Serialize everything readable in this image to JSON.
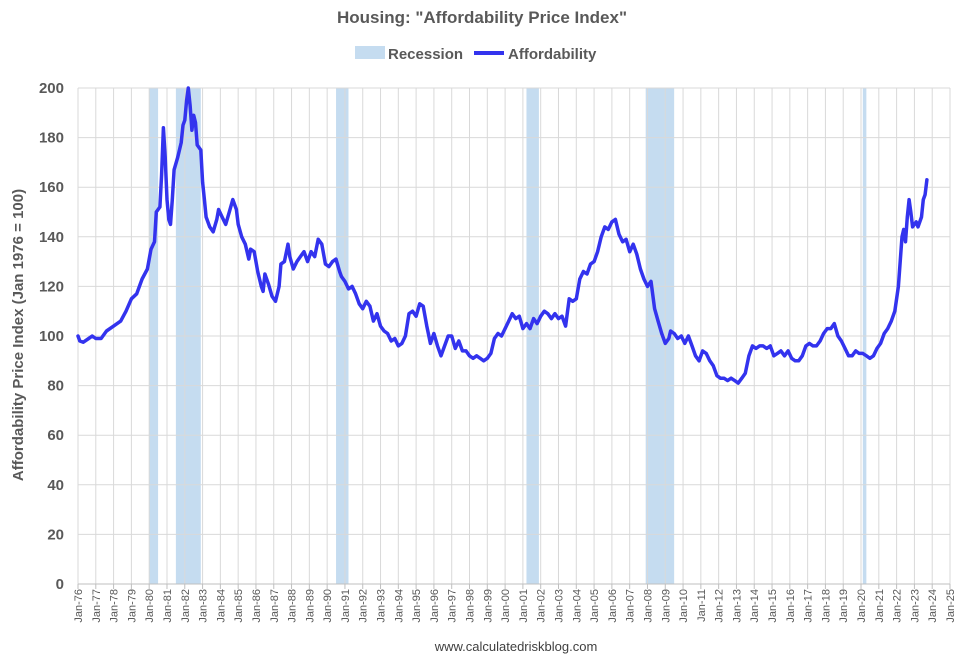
{
  "chart_data": {
    "type": "line",
    "title": "Housing: \"Affordability Price Index\"",
    "ylabel": "Affordability Price Index (Jan 1976 = 100)",
    "xlabel": "",
    "ylim": [
      0,
      200
    ],
    "yticks": [
      0,
      20,
      40,
      60,
      80,
      100,
      120,
      140,
      160,
      180,
      200
    ],
    "xlim": [
      1976,
      2025
    ],
    "x_tick_labels": [
      "Jan-76",
      "Jan-77",
      "Jan-78",
      "Jan-79",
      "Jan-80",
      "Jan-81",
      "Jan-82",
      "Jan-83",
      "Jan-84",
      "Jan-85",
      "Jan-86",
      "Jan-87",
      "Jan-88",
      "Jan-89",
      "Jan-90",
      "Jan-91",
      "Jan-92",
      "Jan-93",
      "Jan-94",
      "Jan-95",
      "Jan-96",
      "Jan-97",
      "Jan-98",
      "Jan-99",
      "Jan-00",
      "Jan-01",
      "Jan-02",
      "Jan-03",
      "Jan-04",
      "Jan-05",
      "Jan-06",
      "Jan-07",
      "Jan-08",
      "Jan-09",
      "Jan-10",
      "Jan-11",
      "Jan-12",
      "Jan-13",
      "Jan-14",
      "Jan-15",
      "Jan-16",
      "Jan-17",
      "Jan-18",
      "Jan-19",
      "Jan-20",
      "Jan-21",
      "Jan-22",
      "Jan-23",
      "Jan-24",
      "Jan-25"
    ],
    "grid": true,
    "legend_position": "top",
    "legend": [
      {
        "label": "Recession",
        "type": "band",
        "color": "#c5dcf0"
      },
      {
        "label": "Affordability",
        "type": "line",
        "color": "#3333ee"
      }
    ],
    "recessions": [
      [
        1980.0,
        1980.5
      ],
      [
        1981.5,
        1982.9
      ],
      [
        1990.5,
        1991.2
      ],
      [
        2001.2,
        2001.9
      ],
      [
        2007.9,
        2009.5
      ],
      [
        2020.1,
        2020.3
      ]
    ],
    "series": [
      {
        "name": "Affordability",
        "color": "#3333ee",
        "points": [
          [
            1976.0,
            100
          ],
          [
            1976.1,
            98
          ],
          [
            1976.3,
            97.5
          ],
          [
            1976.6,
            99
          ],
          [
            1976.8,
            100
          ],
          [
            1977.0,
            99
          ],
          [
            1977.3,
            99
          ],
          [
            1977.6,
            102
          ],
          [
            1978.0,
            104
          ],
          [
            1978.4,
            106
          ],
          [
            1978.7,
            110
          ],
          [
            1979.0,
            115
          ],
          [
            1979.3,
            117
          ],
          [
            1979.6,
            123
          ],
          [
            1979.9,
            127
          ],
          [
            1980.1,
            135
          ],
          [
            1980.3,
            138
          ],
          [
            1980.4,
            150
          ],
          [
            1980.6,
            152
          ],
          [
            1980.7,
            165
          ],
          [
            1980.8,
            184
          ],
          [
            1980.9,
            172
          ],
          [
            1981.0,
            155
          ],
          [
            1981.1,
            147
          ],
          [
            1981.2,
            145
          ],
          [
            1981.3,
            155
          ],
          [
            1981.4,
            167
          ],
          [
            1981.6,
            172
          ],
          [
            1981.8,
            178
          ],
          [
            1981.9,
            185
          ],
          [
            1982.0,
            187
          ],
          [
            1982.1,
            195
          ],
          [
            1982.2,
            200
          ],
          [
            1982.3,
            193
          ],
          [
            1982.4,
            183
          ],
          [
            1982.5,
            189
          ],
          [
            1982.6,
            186
          ],
          [
            1982.7,
            177
          ],
          [
            1982.9,
            175
          ],
          [
            1983.0,
            162
          ],
          [
            1983.1,
            155
          ],
          [
            1983.2,
            148
          ],
          [
            1983.4,
            144
          ],
          [
            1983.6,
            142
          ],
          [
            1983.8,
            147
          ],
          [
            1983.9,
            151
          ],
          [
            1984.1,
            148
          ],
          [
            1984.3,
            145
          ],
          [
            1984.5,
            150
          ],
          [
            1984.7,
            155
          ],
          [
            1984.9,
            151
          ],
          [
            1985.0,
            145
          ],
          [
            1985.2,
            140
          ],
          [
            1985.4,
            137
          ],
          [
            1985.6,
            131
          ],
          [
            1985.7,
            135
          ],
          [
            1985.9,
            134
          ],
          [
            1986.1,
            126
          ],
          [
            1986.3,
            120
          ],
          [
            1986.4,
            118
          ],
          [
            1986.5,
            125
          ],
          [
            1986.7,
            121
          ],
          [
            1986.9,
            116
          ],
          [
            1987.1,
            114
          ],
          [
            1987.3,
            120
          ],
          [
            1987.4,
            129
          ],
          [
            1987.6,
            130
          ],
          [
            1987.8,
            137
          ],
          [
            1987.9,
            132
          ],
          [
            1988.1,
            127
          ],
          [
            1988.3,
            130
          ],
          [
            1988.5,
            132
          ],
          [
            1988.7,
            134
          ],
          [
            1988.9,
            130
          ],
          [
            1989.1,
            134
          ],
          [
            1989.3,
            132
          ],
          [
            1989.5,
            139
          ],
          [
            1989.7,
            137
          ],
          [
            1989.9,
            129
          ],
          [
            1990.1,
            128
          ],
          [
            1990.3,
            130
          ],
          [
            1990.5,
            131
          ],
          [
            1990.7,
            126
          ],
          [
            1990.8,
            124
          ],
          [
            1991.0,
            122
          ],
          [
            1991.2,
            119
          ],
          [
            1991.4,
            120
          ],
          [
            1991.6,
            117
          ],
          [
            1991.8,
            113
          ],
          [
            1992.0,
            111
          ],
          [
            1992.2,
            114
          ],
          [
            1992.4,
            112
          ],
          [
            1992.6,
            106
          ],
          [
            1992.8,
            109
          ],
          [
            1993.0,
            104
          ],
          [
            1993.2,
            102
          ],
          [
            1993.4,
            101
          ],
          [
            1993.6,
            98
          ],
          [
            1993.8,
            99
          ],
          [
            1994.0,
            96
          ],
          [
            1994.2,
            97
          ],
          [
            1994.4,
            100
          ],
          [
            1994.6,
            109
          ],
          [
            1994.8,
            110
          ],
          [
            1995.0,
            108
          ],
          [
            1995.2,
            113
          ],
          [
            1995.4,
            112
          ],
          [
            1995.6,
            104
          ],
          [
            1995.8,
            97
          ],
          [
            1996.0,
            101
          ],
          [
            1996.2,
            96
          ],
          [
            1996.4,
            92
          ],
          [
            1996.6,
            96
          ],
          [
            1996.8,
            100
          ],
          [
            1997.0,
            100
          ],
          [
            1997.2,
            95
          ],
          [
            1997.4,
            98
          ],
          [
            1997.6,
            94
          ],
          [
            1997.8,
            94
          ],
          [
            1998.0,
            92
          ],
          [
            1998.2,
            91
          ],
          [
            1998.4,
            92
          ],
          [
            1998.6,
            91
          ],
          [
            1998.8,
            90
          ],
          [
            1999.0,
            91
          ],
          [
            1999.2,
            93
          ],
          [
            1999.4,
            99
          ],
          [
            1999.6,
            101
          ],
          [
            1999.8,
            100
          ],
          [
            2000.0,
            103
          ],
          [
            2000.2,
            106
          ],
          [
            2000.4,
            109
          ],
          [
            2000.6,
            107
          ],
          [
            2000.8,
            108
          ],
          [
            2001.0,
            103
          ],
          [
            2001.2,
            105
          ],
          [
            2001.4,
            103
          ],
          [
            2001.6,
            107
          ],
          [
            2001.8,
            105
          ],
          [
            2002.0,
            108
          ],
          [
            2002.2,
            110
          ],
          [
            2002.4,
            109
          ],
          [
            2002.6,
            107
          ],
          [
            2002.8,
            109
          ],
          [
            2003.0,
            107
          ],
          [
            2003.2,
            108
          ],
          [
            2003.4,
            104
          ],
          [
            2003.6,
            115
          ],
          [
            2003.8,
            114
          ],
          [
            2004.0,
            115
          ],
          [
            2004.2,
            123
          ],
          [
            2004.4,
            126
          ],
          [
            2004.6,
            125
          ],
          [
            2004.8,
            129
          ],
          [
            2005.0,
            130
          ],
          [
            2005.2,
            134
          ],
          [
            2005.4,
            140
          ],
          [
            2005.6,
            144
          ],
          [
            2005.8,
            143
          ],
          [
            2006.0,
            146
          ],
          [
            2006.2,
            147
          ],
          [
            2006.4,
            141
          ],
          [
            2006.6,
            138
          ],
          [
            2006.8,
            139
          ],
          [
            2007.0,
            134
          ],
          [
            2007.2,
            137
          ],
          [
            2007.4,
            133
          ],
          [
            2007.6,
            127
          ],
          [
            2007.8,
            123
          ],
          [
            2008.0,
            120
          ],
          [
            2008.2,
            122
          ],
          [
            2008.4,
            111
          ],
          [
            2008.6,
            106
          ],
          [
            2008.8,
            101
          ],
          [
            2009.0,
            97
          ],
          [
            2009.2,
            99
          ],
          [
            2009.3,
            102
          ],
          [
            2009.5,
            101
          ],
          [
            2009.7,
            99
          ],
          [
            2009.9,
            100
          ],
          [
            2010.1,
            97
          ],
          [
            2010.3,
            100
          ],
          [
            2010.5,
            96
          ],
          [
            2010.7,
            92
          ],
          [
            2010.9,
            90
          ],
          [
            2011.1,
            94
          ],
          [
            2011.3,
            93
          ],
          [
            2011.5,
            90
          ],
          [
            2011.7,
            88
          ],
          [
            2011.9,
            84
          ],
          [
            2012.1,
            83
          ],
          [
            2012.3,
            83
          ],
          [
            2012.5,
            82
          ],
          [
            2012.7,
            83
          ],
          [
            2012.9,
            82
          ],
          [
            2013.1,
            81
          ],
          [
            2013.3,
            83
          ],
          [
            2013.5,
            85
          ],
          [
            2013.7,
            92
          ],
          [
            2013.9,
            96
          ],
          [
            2014.1,
            95
          ],
          [
            2014.3,
            96
          ],
          [
            2014.5,
            96
          ],
          [
            2014.7,
            95
          ],
          [
            2014.9,
            96
          ],
          [
            2015.1,
            92
          ],
          [
            2015.3,
            93
          ],
          [
            2015.5,
            94
          ],
          [
            2015.7,
            92
          ],
          [
            2015.9,
            94
          ],
          [
            2016.1,
            91
          ],
          [
            2016.3,
            90
          ],
          [
            2016.5,
            90
          ],
          [
            2016.7,
            92
          ],
          [
            2016.9,
            96
          ],
          [
            2017.1,
            97
          ],
          [
            2017.3,
            96
          ],
          [
            2017.5,
            96
          ],
          [
            2017.7,
            98
          ],
          [
            2017.9,
            101
          ],
          [
            2018.1,
            103
          ],
          [
            2018.3,
            103
          ],
          [
            2018.5,
            105
          ],
          [
            2018.7,
            100
          ],
          [
            2018.9,
            98
          ],
          [
            2019.1,
            95
          ],
          [
            2019.3,
            92
          ],
          [
            2019.5,
            92
          ],
          [
            2019.7,
            94
          ],
          [
            2019.9,
            93
          ],
          [
            2020.1,
            93
          ],
          [
            2020.3,
            92
          ],
          [
            2020.5,
            91
          ],
          [
            2020.7,
            92
          ],
          [
            2020.9,
            95
          ],
          [
            2021.1,
            97
          ],
          [
            2021.3,
            101
          ],
          [
            2021.5,
            103
          ],
          [
            2021.7,
            106
          ],
          [
            2021.9,
            110
          ],
          [
            2022.1,
            120
          ],
          [
            2022.3,
            140
          ],
          [
            2022.4,
            143
          ],
          [
            2022.5,
            138
          ],
          [
            2022.6,
            148
          ],
          [
            2022.7,
            155
          ],
          [
            2022.8,
            150
          ],
          [
            2022.9,
            144
          ],
          [
            2023.1,
            146
          ],
          [
            2023.2,
            144
          ],
          [
            2023.4,
            148
          ],
          [
            2023.5,
            155
          ],
          [
            2023.6,
            157
          ],
          [
            2023.7,
            163
          ]
        ]
      }
    ]
  },
  "footer": {
    "source": "www.calculatedriskblog.com"
  }
}
